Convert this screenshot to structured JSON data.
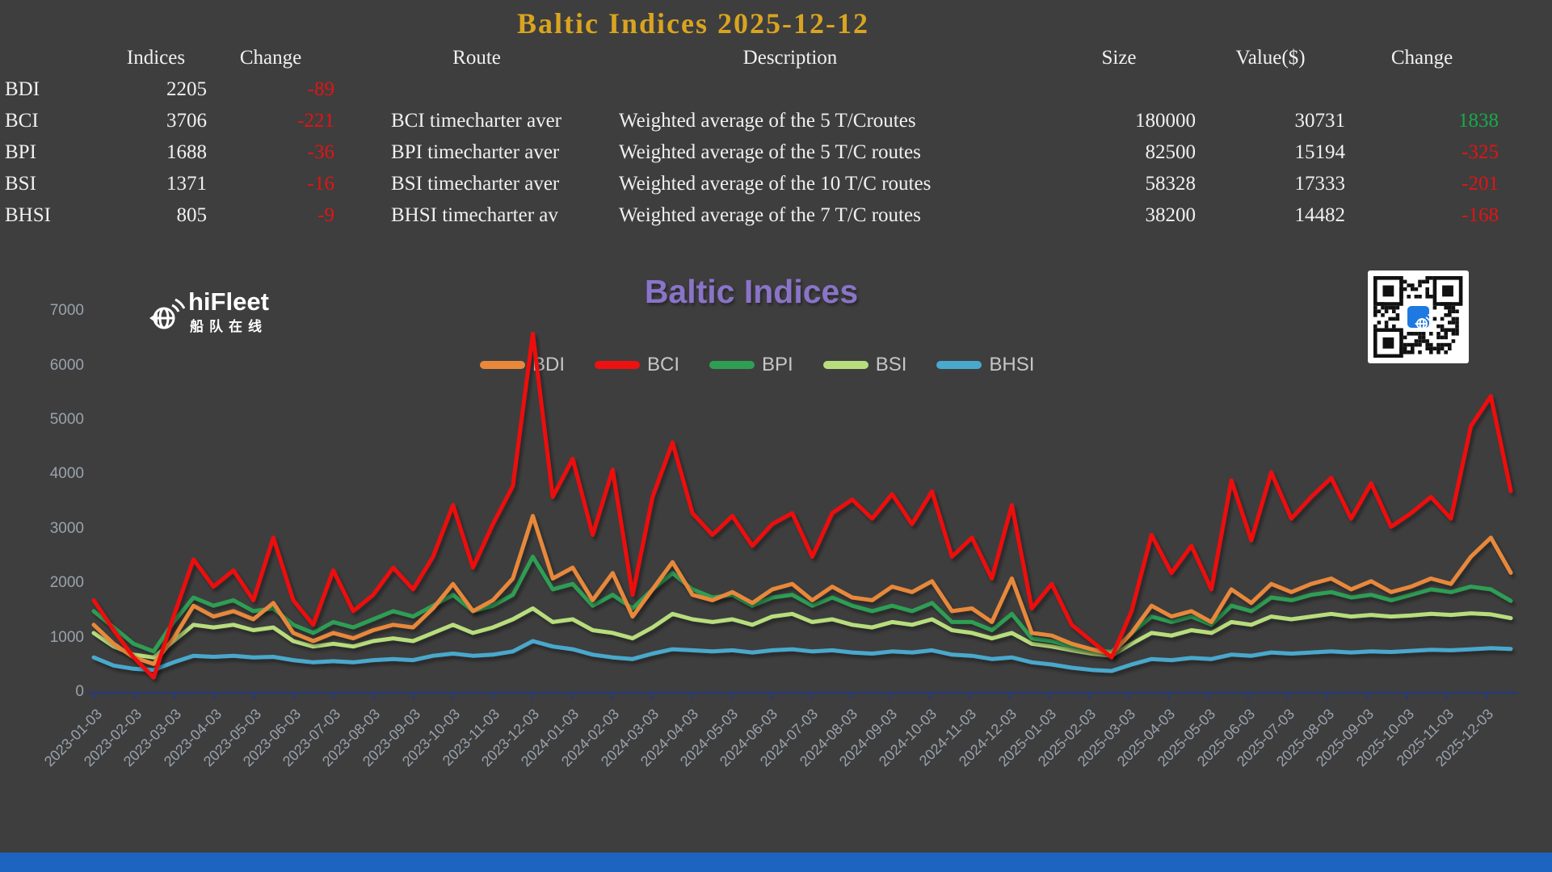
{
  "page": {
    "title": "Baltic Indices 2025-12-12"
  },
  "table": {
    "headers": [
      "Indices",
      "Change",
      "Route",
      "Description",
      "Size",
      "Value($)",
      "Change"
    ],
    "rows": [
      {
        "name": "BDI",
        "index": "2205",
        "change": "-89",
        "change_dir": "down",
        "route": "",
        "description": "",
        "size": "",
        "value": "",
        "change2": "",
        "change2_dir": "down"
      },
      {
        "name": "BCI",
        "index": "3706",
        "change": "-221",
        "change_dir": "down",
        "route": "BCI timecharter aver",
        "description": "Weighted average of the 5 T/Croutes",
        "size": "180000",
        "value": "30731",
        "change2": "1838",
        "change2_dir": "up"
      },
      {
        "name": "BPI",
        "index": "1688",
        "change": "-36",
        "change_dir": "down",
        "route": "BPI timecharter aver",
        "description": "Weighted average of the 5 T/C routes",
        "size": "82500",
        "value": "15194",
        "change2": "-325",
        "change2_dir": "down"
      },
      {
        "name": "BSI",
        "index": "1371",
        "change": "-16",
        "change_dir": "down",
        "route": "BSI timecharter aver",
        "description": "Weighted average of the 10 T/C routes",
        "size": "58328",
        "value": "17333",
        "change2": "-201",
        "change2_dir": "down"
      },
      {
        "name": "BHSI",
        "index": "805",
        "change": "-9",
        "change_dir": "down",
        "route": "BHSI timecharter av",
        "description": "Weighted average of the 7 T/C routes",
        "size": "38200",
        "value": "14482",
        "change2": "-168",
        "change2_dir": "down"
      }
    ]
  },
  "logo": {
    "text": "hiFleet",
    "subtext": "船队在线"
  },
  "colors": {
    "background": "#3e3e3e",
    "page_title": "#d9a41f",
    "chart_title": "#8a74c9",
    "negative": "#e21414",
    "positive": "#17a94d",
    "axis": "#2c3a6e",
    "tick_text": "#9aa2ac",
    "legend_text": "#c6c6c6",
    "bottom_bar": "#1d64c0"
  },
  "chart_data": {
    "type": "line",
    "title": "Baltic Indices",
    "xlabel": "",
    "ylabel": "",
    "ylim": [
      0,
      7000
    ],
    "yticks": [
      0,
      1000,
      2000,
      3000,
      4000,
      5000,
      6000,
      7000
    ],
    "grid": false,
    "legend_position": "top-center",
    "x_labels": [
      "2023-01-03",
      "2023-02-03",
      "2023-03-03",
      "2023-04-03",
      "2023-05-03",
      "2023-06-03",
      "2023-07-03",
      "2023-08-03",
      "2023-09-03",
      "2023-10-03",
      "2023-11-03",
      "2023-12-03",
      "2024-01-03",
      "2024-02-03",
      "2024-03-03",
      "2024-04-03",
      "2024-05-03",
      "2024-06-03",
      "2024-07-03",
      "2024-08-03",
      "2024-09-03",
      "2024-10-03",
      "2024-11-03",
      "2024-12-03",
      "2025-01-03",
      "2025-02-03",
      "2025-03-03",
      "2025-04-03",
      "2025-05-03",
      "2025-06-03",
      "2025-07-03",
      "2025-08-03",
      "2025-09-03",
      "2025-10-03",
      "2025-11-03",
      "2025-12-03"
    ],
    "points_per_month": 2,
    "series": [
      {
        "name": "BDI",
        "color": "#e8883a",
        "values": [
          1250,
          900,
          650,
          530,
          1000,
          1600,
          1400,
          1500,
          1350,
          1650,
          1100,
          950,
          1100,
          1000,
          1150,
          1250,
          1200,
          1550,
          2000,
          1500,
          1700,
          2100,
          3250,
          2100,
          2300,
          1700,
          2200,
          1400,
          1900,
          2400,
          1800,
          1700,
          1850,
          1650,
          1900,
          2000,
          1700,
          1950,
          1750,
          1700,
          1950,
          1850,
          2050,
          1500,
          1550,
          1300,
          2100,
          1100,
          1050,
          900,
          800,
          715,
          1100,
          1600,
          1400,
          1500,
          1300,
          1900,
          1650,
          2000,
          1850,
          2000,
          2100,
          1900,
          2050,
          1850,
          1950,
          2100,
          2000,
          2500,
          2850,
          2205
        ]
      },
      {
        "name": "BCI",
        "color": "#ee1111",
        "values": [
          1700,
          1150,
          650,
          280,
          1400,
          2450,
          1950,
          2250,
          1700,
          2850,
          1700,
          1250,
          2250,
          1500,
          1800,
          2300,
          1900,
          2500,
          3450,
          2300,
          3100,
          3800,
          6600,
          3600,
          4300,
          2900,
          4100,
          1800,
          3600,
          4600,
          3300,
          2900,
          3250,
          2700,
          3100,
          3300,
          2500,
          3300,
          3550,
          3200,
          3650,
          3100,
          3700,
          2500,
          2850,
          2100,
          3450,
          1550,
          2000,
          1250,
          950,
          650,
          1500,
          2900,
          2200,
          2700,
          1900,
          3900,
          2800,
          4050,
          3200,
          3600,
          3950,
          3200,
          3850,
          3050,
          3300,
          3600,
          3200,
          4900,
          5450,
          3706
        ]
      },
      {
        "name": "BPI",
        "color": "#2f9e54",
        "values": [
          1500,
          1200,
          900,
          760,
          1300,
          1750,
          1600,
          1700,
          1500,
          1550,
          1250,
          1100,
          1300,
          1200,
          1350,
          1500,
          1400,
          1600,
          1800,
          1500,
          1600,
          1800,
          2500,
          1900,
          2000,
          1600,
          1800,
          1550,
          1900,
          2200,
          1900,
          1750,
          1800,
          1600,
          1750,
          1800,
          1600,
          1750,
          1600,
          1500,
          1600,
          1500,
          1650,
          1300,
          1300,
          1150,
          1450,
          1000,
          950,
          850,
          800,
          750,
          1100,
          1400,
          1300,
          1400,
          1250,
          1600,
          1500,
          1750,
          1700,
          1800,
          1850,
          1750,
          1800,
          1700,
          1800,
          1900,
          1850,
          1950,
          1900,
          1688
        ]
      },
      {
        "name": "BSI",
        "color": "#b8dd7d",
        "values": [
          1100,
          850,
          700,
          650,
          950,
          1250,
          1200,
          1250,
          1150,
          1200,
          950,
          850,
          900,
          850,
          950,
          1000,
          950,
          1100,
          1250,
          1100,
          1200,
          1350,
          1550,
          1300,
          1350,
          1150,
          1100,
          1000,
          1200,
          1450,
          1350,
          1300,
          1350,
          1250,
          1400,
          1450,
          1300,
          1350,
          1250,
          1200,
          1300,
          1250,
          1350,
          1150,
          1100,
          1000,
          1100,
          900,
          850,
          780,
          720,
          680,
          900,
          1100,
          1050,
          1150,
          1100,
          1300,
          1250,
          1400,
          1350,
          1400,
          1450,
          1400,
          1430,
          1400,
          1420,
          1450,
          1430,
          1460,
          1440,
          1371
        ]
      },
      {
        "name": "BHSI",
        "color": "#49a8cc",
        "values": [
          650,
          500,
          440,
          420,
          560,
          680,
          660,
          680,
          650,
          660,
          600,
          560,
          580,
          560,
          600,
          620,
          600,
          680,
          720,
          680,
          700,
          760,
          950,
          850,
          800,
          700,
          650,
          620,
          720,
          800,
          780,
          760,
          780,
          740,
          780,
          800,
          760,
          780,
          740,
          720,
          760,
          740,
          780,
          700,
          680,
          620,
          650,
          560,
          520,
          460,
          420,
          400,
          520,
          620,
          600,
          640,
          620,
          700,
          680,
          740,
          720,
          740,
          760,
          740,
          760,
          750,
          770,
          790,
          780,
          800,
          820,
          805
        ]
      }
    ]
  }
}
